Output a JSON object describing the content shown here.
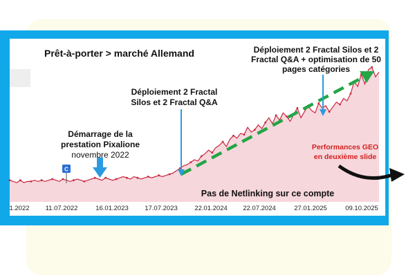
{
  "chart_data": {
    "type": "area",
    "title": "Prêt-à-porter > marché Allemand",
    "x_tick_labels": [
      "1.2022",
      "11.07.2022",
      "16.01.2023",
      "17.07.2023",
      "22.01.2024",
      "22.07.2024",
      "27.01.2025",
      "09.10.2025"
    ],
    "series": [
      {
        "values": [
          18,
          17,
          16,
          18,
          16,
          17,
          17,
          18,
          17,
          18,
          17,
          18,
          19,
          18,
          17,
          19,
          18,
          17,
          18,
          19,
          18,
          17,
          18,
          19,
          20,
          19,
          18,
          20,
          19,
          18,
          19,
          20,
          21,
          20,
          19,
          21,
          20,
          19,
          20,
          21,
          20,
          21,
          22,
          21,
          22,
          23,
          24,
          26,
          28,
          30,
          31,
          33,
          35,
          34,
          38,
          40,
          43,
          41,
          45,
          47,
          50,
          46,
          52,
          55,
          53,
          57,
          56,
          62,
          58,
          60,
          64,
          61,
          66,
          70,
          65,
          72,
          68,
          74,
          71,
          67,
          73,
          78,
          70,
          75,
          80,
          76,
          74,
          82,
          78,
          80,
          75,
          79,
          83,
          81,
          86,
          84,
          90,
          100,
          96,
          106,
          98,
          110,
          112,
          104,
          108
        ]
      }
    ],
    "annotations": [
      {
        "lines": [
          "Démarrage de la",
          "prestation Pixalione"
        ],
        "sub": "novembre 2022"
      },
      {
        "lines": [
          "Déploiement 2 Fractal",
          "Silos et 2 Fractal Q&A"
        ]
      },
      {
        "lines": [
          "Déploiement 2 Fractal Silos et 2",
          "Fractal Q&A + optimisation de 50",
          "pages catégories"
        ]
      },
      {
        "lines": [
          "Performances GEO",
          "en deuxième slide"
        ]
      },
      {
        "lines": [
          "Pas de Netlinking sur ce compte"
        ]
      }
    ],
    "marker_label": "C",
    "colors": {
      "frame": "#11a8ea",
      "line": "#c8283f",
      "fill": "#f6d7dc",
      "trend": "#24a546",
      "arrow": "#2b9be0",
      "geo_text": "#d4201f",
      "curve_arrow": "#111111"
    }
  }
}
